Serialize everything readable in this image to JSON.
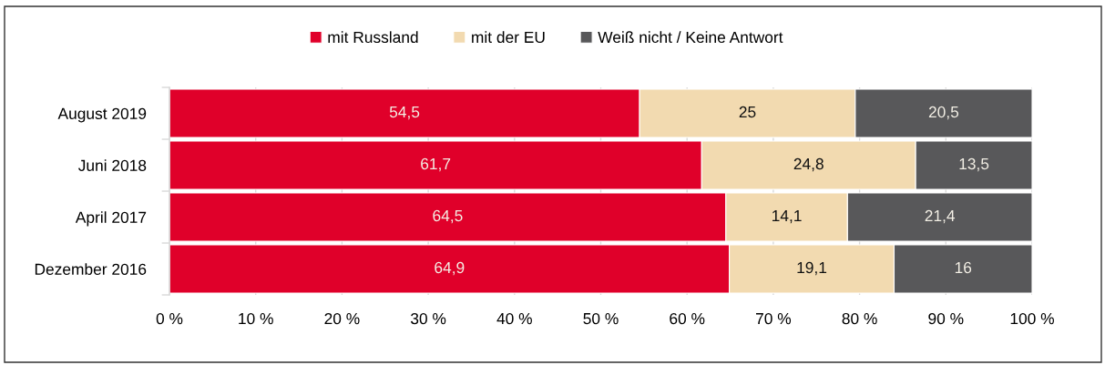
{
  "chart_data": {
    "type": "bar",
    "orientation": "horizontal",
    "stacked": true,
    "categories": [
      "August 2019",
      "Juni 2018",
      "April 2017",
      "Dezember 2016"
    ],
    "series": [
      {
        "name": "mit Russland",
        "color": "#e0002a",
        "values": [
          54.5,
          61.7,
          64.5,
          64.9
        ],
        "value_labels": [
          "54,5",
          "61,7",
          "64,5",
          "64,9"
        ]
      },
      {
        "name": "mit der EU",
        "color": "#f2dab0",
        "values": [
          25,
          24.8,
          14.1,
          19.1
        ],
        "value_labels": [
          "25",
          "24,8",
          "14,1",
          "19,1"
        ]
      },
      {
        "name": "Weiß nicht / Keine Antwort",
        "color": "#58585a",
        "values": [
          20.5,
          13.5,
          21.4,
          16
        ],
        "value_labels": [
          "20,5",
          "13,5",
          "21,4",
          "16"
        ]
      }
    ],
    "xlim": [
      0,
      100
    ],
    "xticks": [
      {
        "value": 0,
        "label": "0 %"
      },
      {
        "value": 10,
        "label": "10 %"
      },
      {
        "value": 20,
        "label": "20 %"
      },
      {
        "value": 30,
        "label": "30 %"
      },
      {
        "value": 40,
        "label": "40 %"
      },
      {
        "value": 50,
        "label": "50 %"
      },
      {
        "value": 60,
        "label": "60 %"
      },
      {
        "value": 70,
        "label": "70 %"
      },
      {
        "value": 80,
        "label": "80 %"
      },
      {
        "value": 90,
        "label": "90 %"
      },
      {
        "value": 100,
        "label": "100 %"
      }
    ],
    "grid": "x",
    "legend": "top"
  }
}
